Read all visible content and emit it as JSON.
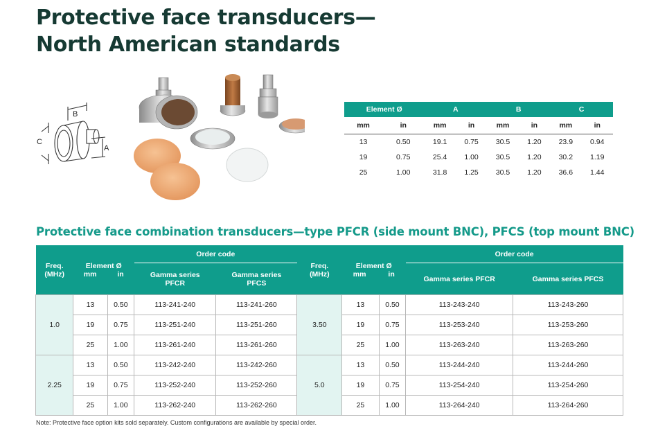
{
  "title_line1": "Protective face transducers—",
  "title_line2": "North American standards",
  "diagram_labels": {
    "a": "A",
    "b": "B",
    "c": "C"
  },
  "dims_table": {
    "group_headers": [
      "Element Ø",
      "A",
      "B",
      "C"
    ],
    "unit_headers": [
      "mm",
      "in",
      "mm",
      "in",
      "mm",
      "in",
      "mm",
      "in"
    ],
    "rows": [
      [
        "13",
        "0.50",
        "19.1",
        "0.75",
        "30.5",
        "1.20",
        "23.9",
        "0.94"
      ],
      [
        "19",
        "0.75",
        "25.4",
        "1.00",
        "30.5",
        "1.20",
        "30.2",
        "1.19"
      ],
      [
        "25",
        "1.00",
        "31.8",
        "1.25",
        "30.5",
        "1.20",
        "36.6",
        "1.44"
      ]
    ]
  },
  "section_title": "Protective face combination transducers—type PFCR (side mount BNC), PFCS (top mount BNC)",
  "order_table": {
    "left": {
      "freq_header": "Freq.\n(MHz)",
      "element_header": "Element Ø",
      "mm": "mm",
      "in": "in",
      "order_header": "Order code",
      "series1": "Gamma series\nPFCR",
      "series2": "Gamma series\nPFCS"
    },
    "right": {
      "freq_header": "Freq.\n(MHz)",
      "element_header": "Element Ø",
      "mm": "mm",
      "in": "in",
      "order_header": "Order code",
      "series1": "Gamma series PFCR",
      "series2": "Gamma series PFCS"
    },
    "left_groups": [
      {
        "freq": "1.0",
        "rows": [
          {
            "mm": "13",
            "in": "0.50",
            "pfcr": "113-241-240",
            "pfcs": "113-241-260"
          },
          {
            "mm": "19",
            "in": "0.75",
            "pfcr": "113-251-240",
            "pfcs": "113-251-260"
          },
          {
            "mm": "25",
            "in": "1.00",
            "pfcr": "113-261-240",
            "pfcs": "113-261-260"
          }
        ]
      },
      {
        "freq": "2.25",
        "rows": [
          {
            "mm": "13",
            "in": "0.50",
            "pfcr": "113-242-240",
            "pfcs": "113-242-260"
          },
          {
            "mm": "19",
            "in": "0.75",
            "pfcr": "113-252-240",
            "pfcs": "113-252-260"
          },
          {
            "mm": "25",
            "in": "1.00",
            "pfcr": "113-262-240",
            "pfcs": "113-262-260"
          }
        ]
      }
    ],
    "right_groups": [
      {
        "freq": "3.50",
        "rows": [
          {
            "mm": "13",
            "in": "0.50",
            "pfcr": "113-243-240",
            "pfcs": "113-243-260"
          },
          {
            "mm": "19",
            "in": "0.75",
            "pfcr": "113-253-240",
            "pfcs": "113-253-260"
          },
          {
            "mm": "25",
            "in": "1.00",
            "pfcr": "113-263-240",
            "pfcs": "113-263-260"
          }
        ]
      },
      {
        "freq": "5.0",
        "rows": [
          {
            "mm": "13",
            "in": "0.50",
            "pfcr": "113-244-240",
            "pfcs": "113-244-260"
          },
          {
            "mm": "19",
            "in": "0.75",
            "pfcr": "113-254-240",
            "pfcs": "113-254-260"
          },
          {
            "mm": "25",
            "in": "1.00",
            "pfcr": "113-264-240",
            "pfcs": "113-264-260"
          }
        ]
      }
    ]
  },
  "note": "Note: Protective face option kits sold separately. Custom configurations are available by special order."
}
